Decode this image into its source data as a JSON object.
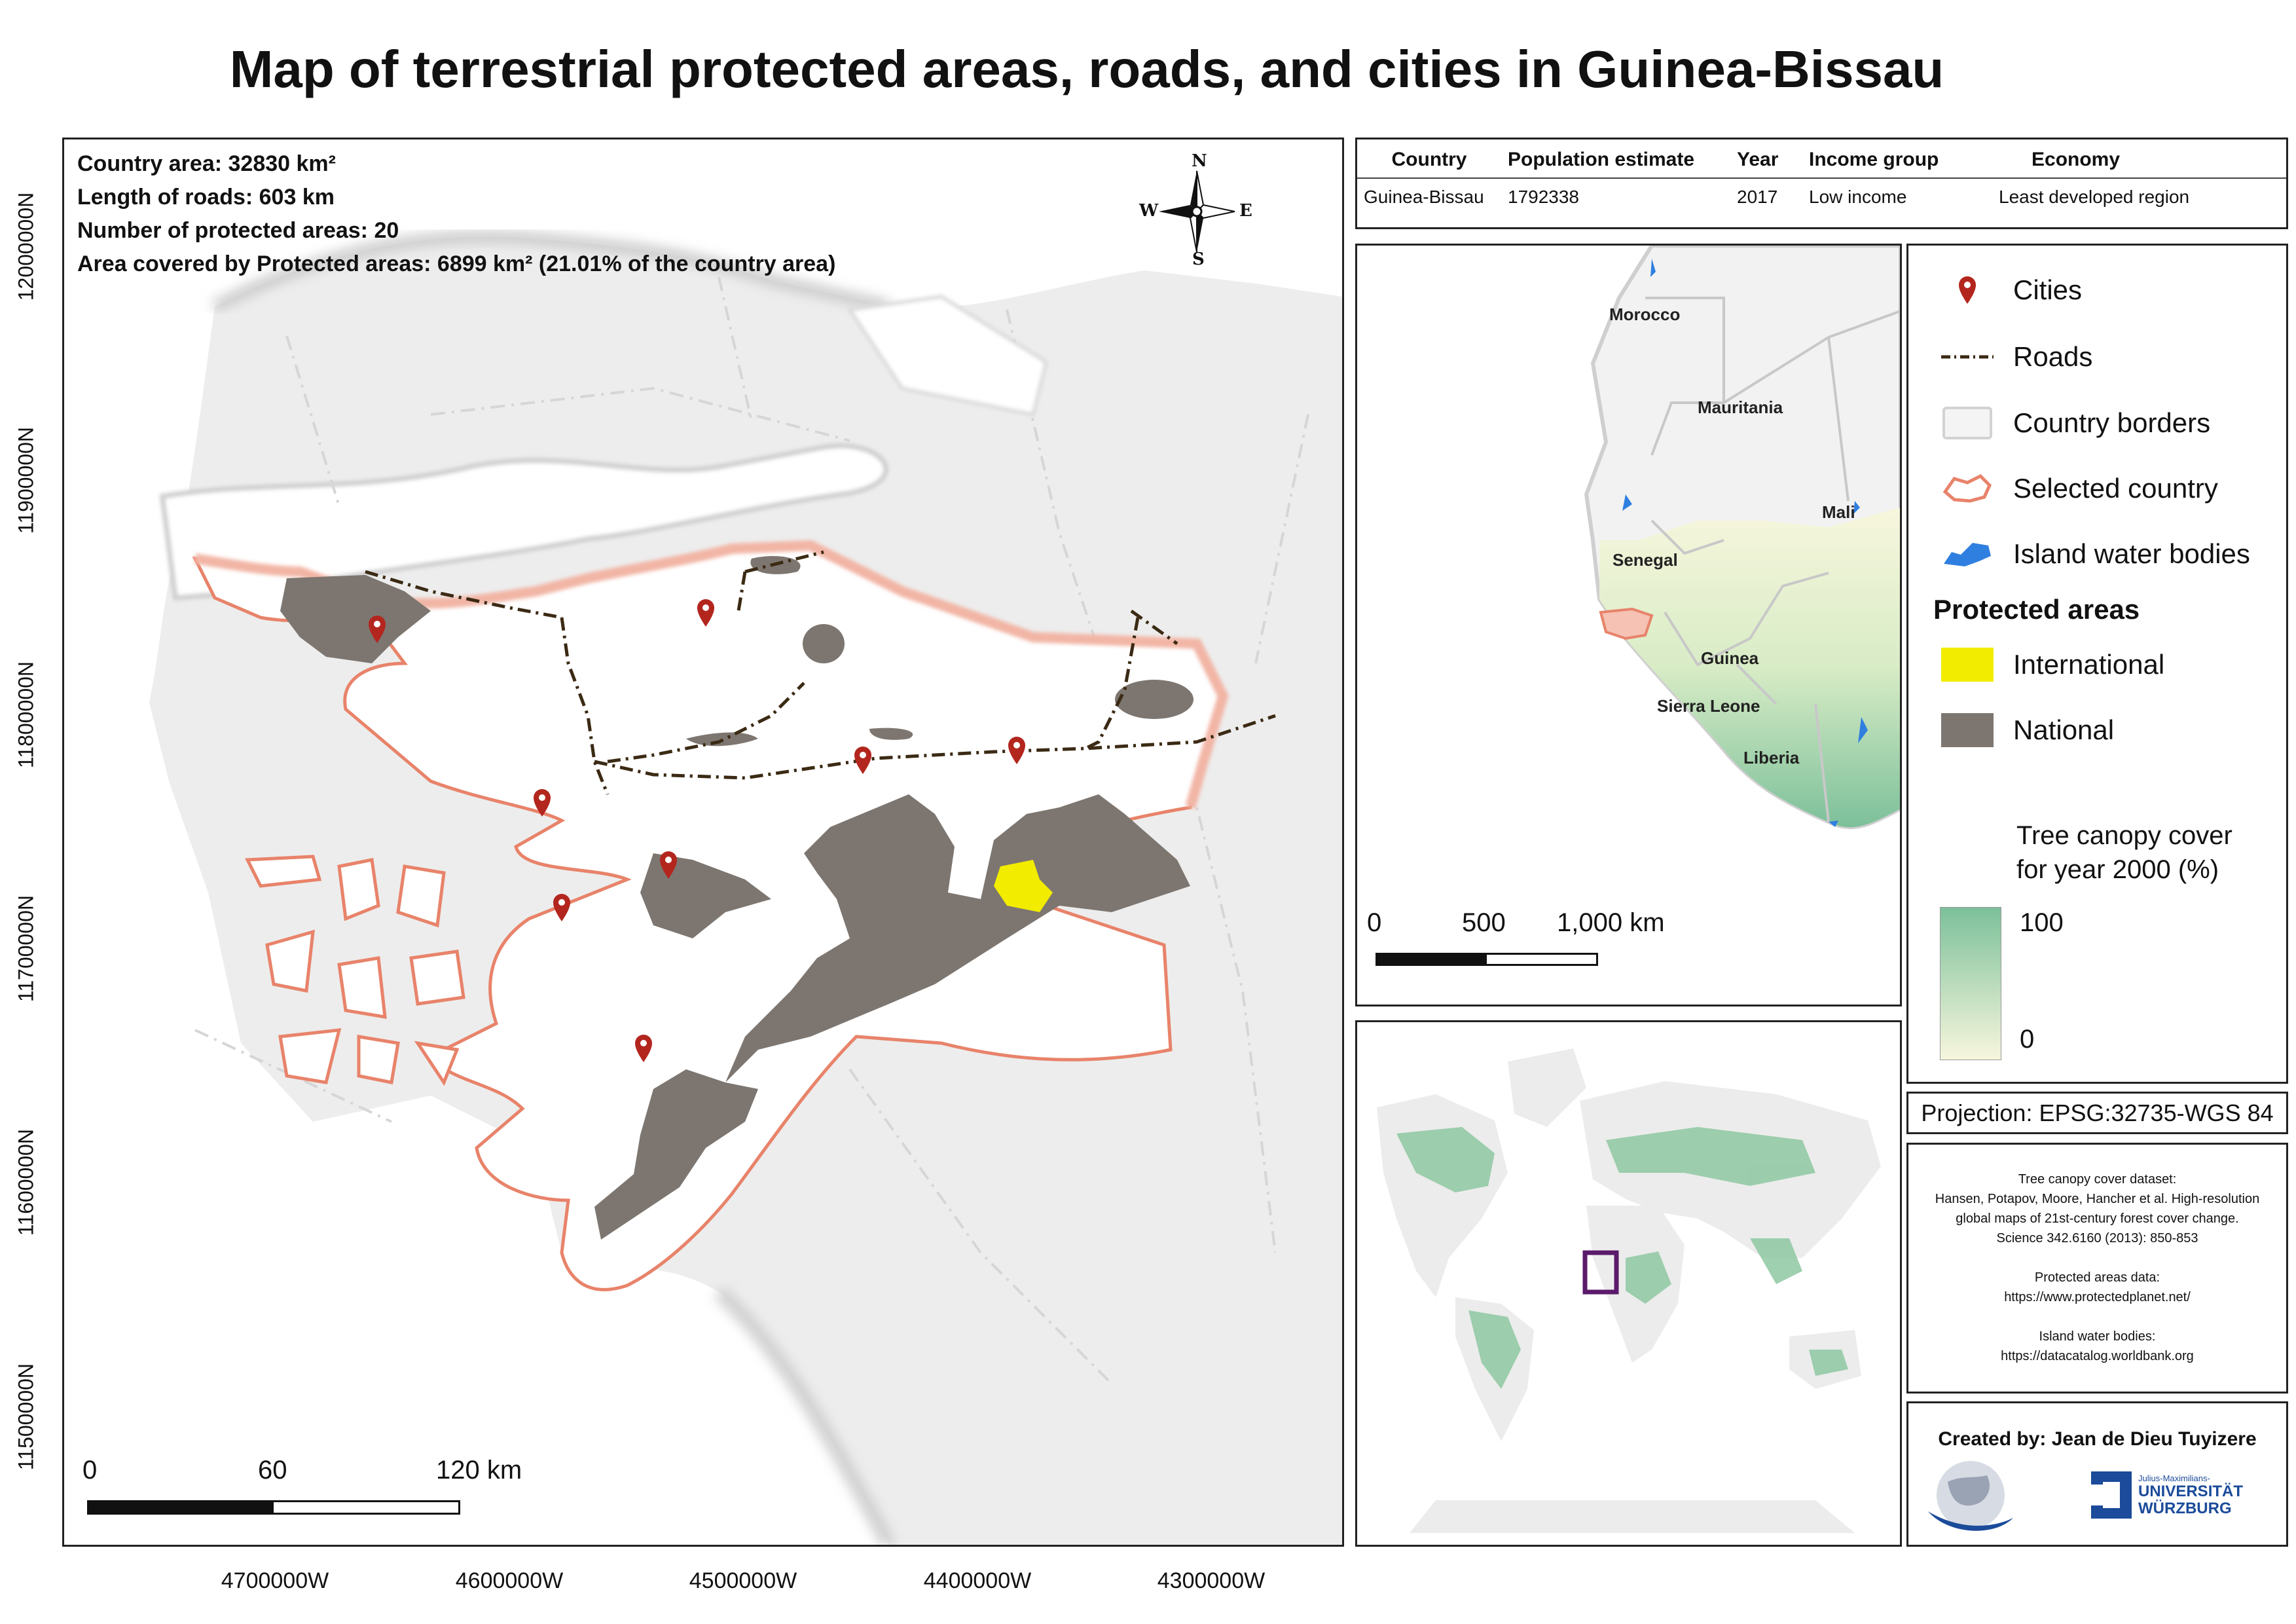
{
  "title": "Map of terrestrial protected areas, roads, and cities in Guinea-Bissau",
  "main_map": {
    "stats": [
      "Country area: 32830 km²",
      "Length of roads: 603 km",
      "Number of protected areas: 20",
      "Area covered by Protected areas: 6899 km² (21.01% of the country area)"
    ],
    "north_arrow": {
      "n": "N",
      "s": "S",
      "e": "E",
      "w": "W"
    },
    "y_axis_labels": [
      "12000000N",
      "11900000N",
      "11800000N",
      "11700000N",
      "11600000N",
      "11500000N"
    ],
    "x_axis_labels": [
      "4700000W",
      "4600000W",
      "4500000W",
      "4400000W",
      "4300000W"
    ],
    "scale_labels": [
      "0",
      "60",
      "120 km"
    ]
  },
  "info_table": {
    "headers": [
      "Country",
      "Population estimate",
      "Year",
      "Income group",
      "Economy"
    ],
    "row": [
      "Guinea-Bissau",
      "1792338",
      "2017",
      "Low income",
      "Least developed region"
    ]
  },
  "regional_map": {
    "countries": [
      "Morocco",
      "Mauritania",
      "Mali",
      "Senegal",
      "Guinea",
      "Sierra Leone",
      "Liberia"
    ],
    "scale_labels": [
      "0",
      "500",
      "1,000 km"
    ]
  },
  "legend": {
    "items": [
      "Cities",
      "Roads",
      "Country borders",
      "Selected country",
      "Island water bodies"
    ],
    "protected_title": "Protected areas",
    "protected_items": [
      "International",
      "National"
    ],
    "tree_title_1": "Tree canopy cover",
    "tree_title_2": "for year 2000 (%)",
    "tree_max": "100",
    "tree_min": "0",
    "colors": {
      "roads": "#3b2a14",
      "selected_country": "#e8836a",
      "island_water": "#2f7fe0",
      "international": "#f2ec00",
      "national": "#7d7670",
      "tree_high": "#7cc09a",
      "tree_low": "#f7f6dd",
      "city_pin": "#b3261e"
    }
  },
  "projection": "Projection: EPSG:32735-WGS 84",
  "sources": [
    "Tree canopy cover dataset:",
    "Hansen, Potapov, Moore, Hancher et al. High-resolution",
    "global maps of 21st-century forest cover change.",
    "Science 342.6160 (2013): 850-853",
    "Protected areas data:",
    "https://www.protectedplanet.net/",
    "Island water bodies:",
    "https://datacatalog.worldbank.org"
  ],
  "credits": {
    "created_by": "Created by: Jean de Dieu Tuyizere",
    "uni_small": "Julius-Maximilians-",
    "uni_line1": "UNIVERSITÄT",
    "uni_line2": "WÜRZBURG"
  }
}
